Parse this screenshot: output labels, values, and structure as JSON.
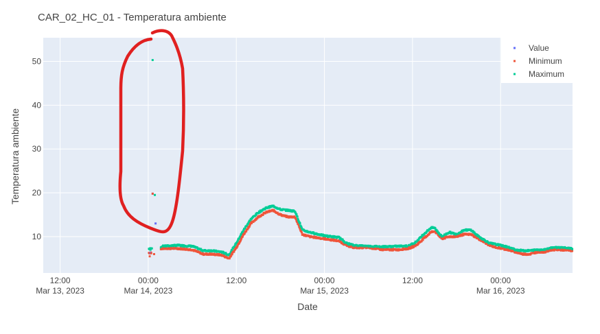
{
  "chart_data": {
    "type": "scatter",
    "title": "CAR_02_HC_01 - Temperatura ambiente",
    "xlabel": "Date",
    "ylabel": "Temperatura ambiente",
    "x_unit": "hours since Mar 13, 2023 00:00",
    "xlim": [
      9.7,
      81.8
    ],
    "ylim": [
      1.7,
      55.4
    ],
    "yticks": [
      10,
      20,
      30,
      40,
      50
    ],
    "xticks": [
      {
        "value": 12,
        "time": "12:00",
        "date": "Mar 13, 2023"
      },
      {
        "value": 24,
        "time": "00:00",
        "date": "Mar 14, 2023"
      },
      {
        "value": 36,
        "time": "12:00",
        "date": ""
      },
      {
        "value": 48,
        "time": "00:00",
        "date": "Mar 15, 2023"
      },
      {
        "value": 60,
        "time": "12:00",
        "date": ""
      },
      {
        "value": 72,
        "time": "00:00",
        "date": "Mar 16, 2023"
      }
    ],
    "legend_position": "top-right",
    "series": [
      {
        "name": "Value",
        "color": "#636efa",
        "points": [
          [
            24.3,
            6.3
          ],
          [
            24.6,
            19.8
          ],
          [
            25.0,
            13.0
          ]
        ]
      },
      {
        "name": "Minimum",
        "color": "#ef553b",
        "points": [
          [
            24.2,
            5.5
          ],
          [
            24.4,
            6.2
          ],
          [
            24.6,
            19.8
          ],
          [
            24.8,
            6.0
          ]
        ]
      },
      {
        "name": "Maximum",
        "color": "#00cc96",
        "points": [
          [
            24.3,
            7.0
          ],
          [
            24.6,
            50.3
          ],
          [
            24.9,
            19.5
          ],
          [
            24.5,
            7.3
          ]
        ]
      }
    ],
    "trace": {
      "x": [
        24.1,
        25.0,
        26.0,
        28.0,
        30.0,
        31.5,
        32.5,
        34.0,
        35.0,
        36.0,
        37.0,
        38.0,
        39.0,
        40.0,
        41.0,
        42.0,
        43.0,
        44.0,
        45.0,
        46.0,
        48.0,
        50.0,
        51.0,
        52.0,
        54.0,
        56.0,
        58.0,
        59.5,
        60.5,
        61.5,
        62.5,
        63.0,
        64.0,
        65.0,
        66.0,
        67.0,
        68.0,
        69.0,
        70.0,
        70.5,
        71.5,
        73.0,
        74.0,
        75.0,
        76.0,
        77.0,
        78.0,
        79.0,
        80.0,
        81.8
      ],
      "min": [
        6.3,
        6.5,
        7.3,
        7.3,
        7.0,
        6.0,
        6.0,
        5.8,
        5.0,
        7.5,
        10.5,
        13.0,
        14.5,
        15.5,
        16.0,
        15.0,
        14.5,
        14.5,
        10.5,
        10.0,
        9.5,
        9.0,
        8.0,
        7.5,
        7.5,
        7.0,
        7.0,
        7.3,
        8.0,
        9.5,
        11.0,
        11.3,
        9.5,
        10.0,
        10.0,
        10.5,
        10.5,
        9.5,
        8.5,
        8.0,
        7.5,
        7.0,
        6.5,
        6.0,
        6.0,
        6.5,
        6.5,
        7.0,
        7.0,
        6.8
      ],
      "max": [
        7.2,
        7.3,
        7.8,
        8.0,
        7.8,
        6.8,
        6.8,
        6.5,
        5.8,
        8.5,
        11.5,
        14.0,
        15.5,
        16.5,
        17.0,
        16.2,
        16.0,
        15.8,
        11.5,
        11.0,
        10.2,
        9.8,
        8.5,
        8.0,
        7.8,
        7.7,
        7.8,
        7.9,
        8.8,
        10.5,
        12.0,
        12.0,
        10.0,
        11.0,
        10.5,
        11.5,
        11.5,
        10.0,
        9.0,
        8.5,
        8.2,
        7.6,
        7.0,
        6.8,
        6.8,
        7.0,
        7.0,
        7.5,
        7.5,
        7.3
      ]
    }
  }
}
